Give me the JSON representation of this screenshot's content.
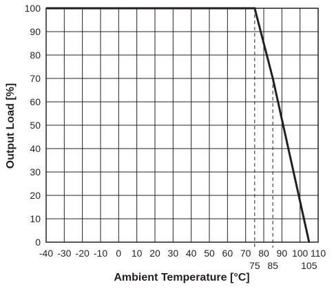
{
  "chart_data": {
    "type": "line",
    "xlabel": "Ambient Temperature [°C]",
    "ylabel": "Output Load [%]",
    "xlim": [
      -40,
      110
    ],
    "ylim": [
      0,
      100
    ],
    "x_ticks": [
      -40,
      -30,
      -20,
      -10,
      0,
      10,
      20,
      30,
      40,
      50,
      60,
      70,
      80,
      90,
      100,
      110
    ],
    "y_ticks": [
      0,
      10,
      20,
      30,
      40,
      50,
      60,
      70,
      80,
      90,
      100
    ],
    "extra_x_ticks": [
      75,
      85,
      105
    ],
    "grid": true,
    "legend": "none",
    "series": [
      {
        "x": [
          -40,
          75,
          85,
          105
        ],
        "y": [
          100,
          100,
          70,
          0
        ],
        "color": "#231f20"
      }
    ],
    "reference_lines": [
      {
        "x": 75,
        "y_top": 100,
        "style": "dashed"
      },
      {
        "x": 85,
        "y_top": 70,
        "style": "dashed"
      }
    ]
  }
}
